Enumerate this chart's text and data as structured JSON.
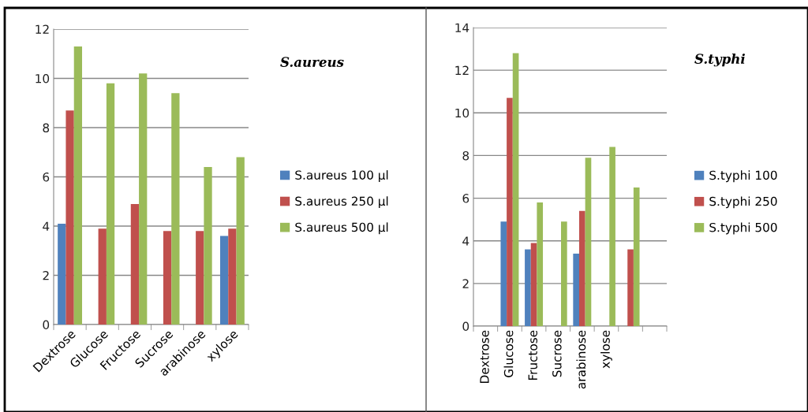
{
  "chart_data": [
    {
      "type": "bar",
      "legend_title": "S.aureus",
      "categories": [
        "Dextrose",
        "Glucose",
        "Fructose",
        "Sucrose",
        "arabinose",
        "xylose"
      ],
      "series": [
        {
          "name": "S.aureus 100 µl",
          "color": "#4f81bd",
          "values": [
            4.1,
            null,
            null,
            null,
            null,
            3.6
          ]
        },
        {
          "name": "S.aureus 250 µl",
          "color": "#c0504d",
          "values": [
            8.7,
            3.9,
            4.9,
            3.8,
            3.8,
            3.9
          ]
        },
        {
          "name": "S.aureus 500 µl",
          "color": "#9bbb59",
          "values": [
            11.3,
            9.8,
            10.2,
            9.4,
            6.4,
            6.8
          ]
        }
      ],
      "ylim": [
        0,
        12
      ],
      "yticks": [
        0,
        2,
        4,
        6,
        8,
        10,
        12
      ],
      "grid": "y",
      "legend": "right"
    },
    {
      "type": "bar",
      "legend_title": "S.typhi",
      "categories": [
        "Dextrose",
        "Glucose",
        "Fructose",
        "Sucrose",
        "arabinose",
        "xylose",
        null,
        null
      ],
      "series": [
        {
          "name": "S.typhi 100",
          "color": "#4f81bd",
          "values": [
            null,
            4.9,
            3.6,
            null,
            3.4,
            null,
            null,
            null
          ]
        },
        {
          "name": "S.typhi 250",
          "color": "#c0504d",
          "values": [
            null,
            10.7,
            3.9,
            null,
            5.4,
            null,
            3.6,
            null
          ]
        },
        {
          "name": "S.typhi 500",
          "color": "#9bbb59",
          "values": [
            null,
            12.8,
            5.8,
            4.9,
            7.9,
            8.4,
            6.5,
            null
          ]
        }
      ],
      "ylim": [
        0,
        14
      ],
      "yticks": [
        0,
        2,
        4,
        6,
        8,
        10,
        12,
        14
      ],
      "grid": "y",
      "legend": "right"
    }
  ]
}
